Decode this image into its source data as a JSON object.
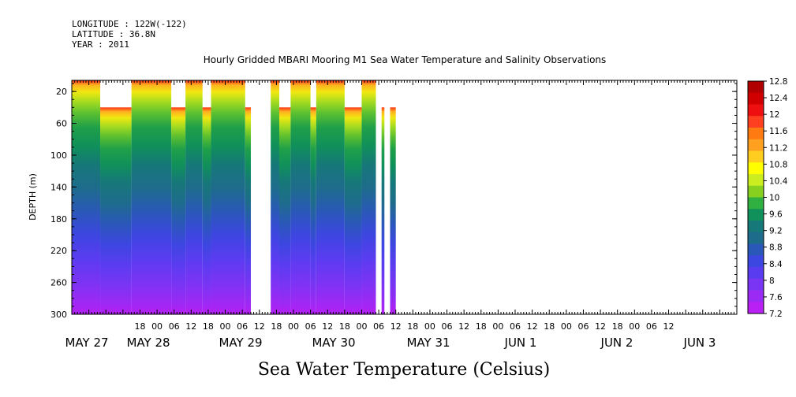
{
  "header": {
    "longitude": "LONGITUDE : 122W(-122)",
    "latitude": "LATITUDE : 36.8N",
    "year": "YEAR : 2011",
    "title": "Hourly Gridded MBARI Mooring M1 Sea Water Temperature and Salinity Observations"
  },
  "chart_data": {
    "type": "heatmap",
    "title": "Hourly Gridded MBARI Mooring M1 Sea Water Temperature and Salinity Observations",
    "xlabel": "Sea Water Temperature (Celsius)",
    "ylabel": "DEPTH (m)",
    "yticks": [
      20,
      60,
      100,
      140,
      180,
      220,
      260,
      300
    ],
    "ylim": [
      300,
      6
    ],
    "xlim_hours_from_may27_00": [
      -30,
      204
    ],
    "hour_ticks": [
      "18",
      "00",
      "06",
      "12",
      "18",
      "00",
      "06",
      "12",
      "18",
      "00",
      "06",
      "12",
      "18",
      "00",
      "06",
      "12",
      "18",
      "00",
      "06",
      "12",
      "18",
      "00",
      "06",
      "12",
      "18",
      "00",
      "06",
      "12",
      "18",
      "00",
      "06",
      "12"
    ],
    "date_labels": [
      "MAY 27",
      "MAY 28",
      "MAY 29",
      "MAY 30",
      "MAY 31",
      "JUN  1",
      "JUN  2",
      "JUN  3"
    ],
    "colorbar": {
      "levels": [
        "12.8",
        "12.4",
        "12",
        "11.6",
        "11.2",
        "10.8",
        "10.4",
        "10",
        "9.6",
        "9.2",
        "8.8",
        "8.4",
        "8",
        "7.6",
        "7.2"
      ],
      "colors": [
        "#b00000",
        "#d00000",
        "#ee1010",
        "#ff4020",
        "#ff7a10",
        "#ffa020",
        "#ffcc20",
        "#ffff00",
        "#ccee20",
        "#88d020",
        "#30b040",
        "#10905a",
        "#167878",
        "#1e6c8c",
        "#2a58b8",
        "#3c46e0",
        "#5a3cf0",
        "#7a34f4",
        "#9a2af4",
        "#b820f4"
      ]
    },
    "valid_data_columns": [
      {
        "start_hour": -30,
        "end_hour": -20,
        "top_depth": 6
      },
      {
        "start_hour": -20,
        "end_hour": -9,
        "top_depth": 40
      },
      {
        "start_hour": -9,
        "end_hour": 5,
        "top_depth": 6
      },
      {
        "start_hour": 5,
        "end_hour": 10,
        "top_depth": 40
      },
      {
        "start_hour": 10,
        "end_hour": 16,
        "top_depth": 6
      },
      {
        "start_hour": 16,
        "end_hour": 19,
        "top_depth": 40
      },
      {
        "start_hour": 19,
        "end_hour": 31,
        "top_depth": 6
      },
      {
        "start_hour": 31,
        "end_hour": 33,
        "top_depth": 40
      },
      {
        "start_hour": 40,
        "end_hour": 43,
        "top_depth": 6
      },
      {
        "start_hour": 43,
        "end_hour": 47,
        "top_depth": 40
      },
      {
        "start_hour": 47,
        "end_hour": 54,
        "top_depth": 6
      },
      {
        "start_hour": 54,
        "end_hour": 56,
        "top_depth": 40
      },
      {
        "start_hour": 56,
        "end_hour": 66,
        "top_depth": 6
      },
      {
        "start_hour": 66,
        "end_hour": 72,
        "top_depth": 40
      },
      {
        "start_hour": 72,
        "end_hour": 77,
        "top_depth": 6
      },
      {
        "start_hour": 79,
        "end_hour": 80,
        "top_depth": 40
      },
      {
        "start_hour": 82,
        "end_hour": 84,
        "top_depth": 40
      }
    ]
  }
}
